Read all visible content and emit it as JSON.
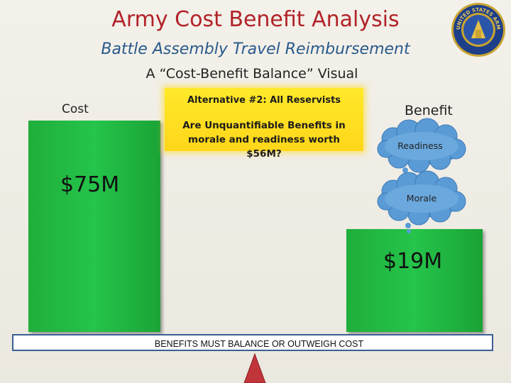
{
  "header": {
    "title": "Army Cost Benefit Analysis",
    "subtitle": "Battle Assembly Travel Reimbursement",
    "tagline": "A “Cost-Benefit Balance” Visual"
  },
  "seal": {
    "icon": "army-reserve-seal",
    "text": "UNITED STATES ARMY RESERVE"
  },
  "cost": {
    "label": "Cost",
    "value": "$75M",
    "amount_millions": 75,
    "color": "#25c44a"
  },
  "benefit": {
    "label": "Benefit",
    "value": "$19M",
    "amount_millions": 19,
    "color": "#25c44a"
  },
  "callout": {
    "heading": "Alternative #2:  All Reservists",
    "body": "Are Unquantifiable Benefits in morale and readiness worth $56M?",
    "color": "#ffe12a"
  },
  "clouds": [
    {
      "label": "Readiness",
      "color": "#5a9bd5"
    },
    {
      "label": "Morale",
      "color": "#5a9bd5"
    }
  ],
  "beam": {
    "text": "BENEFITS MUST BALANCE OR OUTWEIGH COST",
    "border_color": "#3a5f94"
  },
  "fulcrum": {
    "icon": "fulcrum-triangle-icon",
    "color": "#c0353a"
  }
}
